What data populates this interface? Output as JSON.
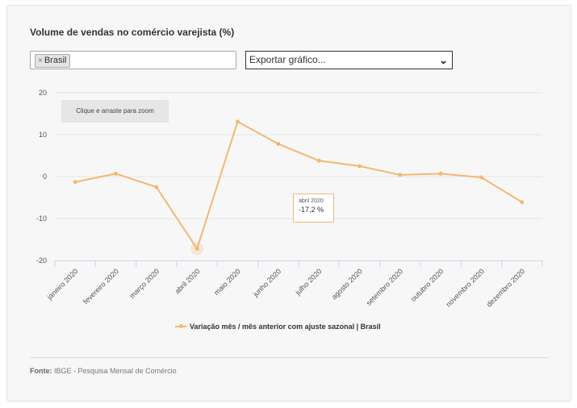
{
  "title": "Volume de vendas no comércio varejista (%)",
  "filter": {
    "chip_label": "Brasil",
    "remove_symbol": "×"
  },
  "export": {
    "label": "Exportar gráfico...",
    "chevron": "⌄"
  },
  "zoom_hint": "Clique e arraste para zoom",
  "tooltip": {
    "date": "abril 2020",
    "value": "-17,2 %"
  },
  "source": {
    "label": "Fonte:",
    "text": "IBGE - Pesquisa Mensal de Comércio"
  },
  "colors": {
    "series": "#f3b872",
    "grid": "#e6e6e6",
    "axis": "#ccd6eb"
  },
  "chart_data": {
    "type": "line",
    "title": "Volume de vendas no comércio varejista (%)",
    "xlabel": "",
    "ylabel": "",
    "ylim": [
      -20,
      20
    ],
    "yticks": [
      20,
      10,
      0,
      -10,
      -20
    ],
    "categories": [
      "janeiro 2020",
      "fevereiro 2020",
      "março 2020",
      "abril 2020",
      "maio 2020",
      "junho 2020",
      "julho 2020",
      "agosto 2020",
      "setembro 2020",
      "outubro 2020",
      "novembro 2020",
      "dezembro 2020"
    ],
    "series": [
      {
        "name": "Variação mês / mês anterior com ajuste sazonal | Brasil",
        "values": [
          -1.3,
          0.7,
          -2.5,
          -17.2,
          13.1,
          7.8,
          3.8,
          2.5,
          0.4,
          0.7,
          -0.2,
          -6.1
        ]
      }
    ],
    "highlighted_point": "abril 2020"
  }
}
